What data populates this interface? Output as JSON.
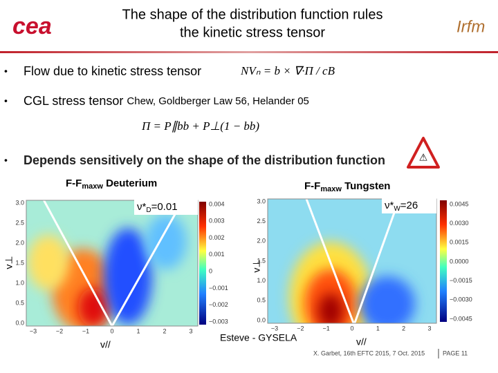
{
  "header": {
    "title_lines": [
      "The shape of the distribution function rules",
      "the kinetic stress tensor"
    ],
    "logo_left": "cea",
    "logo_right": "Irfm"
  },
  "bullets": [
    {
      "text": "Flow due to kinetic stress tensor",
      "formula": "NVₙ = b × ∇·Π / cB"
    },
    {
      "text": "CGL stress tensor",
      "note": "Chew, Goldberger Law 56, Helander 05",
      "formula": "Π = P∥bb + P⊥(1 − bb)"
    },
    {
      "text": "Depends sensitively on the shape of the distribution function"
    }
  ],
  "panels": [
    {
      "label": "F-F",
      "label_sub": "maxw",
      "label_rest": " Deuterium",
      "nu": "ν*",
      "nu_sub": "D",
      "nu_rest": "=0.01",
      "y_label": "v⊥",
      "x_label": "v//",
      "yticks": [
        "0.0",
        "0.5",
        "1.0",
        "1.5",
        "2.0",
        "2.5",
        "3.0"
      ],
      "xticks": [
        "−3",
        "−2",
        "−1",
        "0",
        "1",
        "2",
        "3"
      ],
      "colorbar_ticks": [
        "0.004",
        "0.003",
        "0.002",
        "0.001",
        "0",
        "−0.001",
        "−0.002",
        "−0.003"
      ]
    },
    {
      "label": "F-F",
      "label_sub": "maxw",
      "label_rest": " Tungsten",
      "nu": "ν*",
      "nu_sub": "W",
      "nu_rest": "=26",
      "y_label": "v⊥",
      "x_label": "v//",
      "yticks": [
        "0.0",
        "0.5",
        "1.0",
        "1.5",
        "2.0",
        "2.5",
        "3.0"
      ],
      "xticks": [
        "−3",
        "−2",
        "−1",
        "0",
        "1",
        "2",
        "3"
      ],
      "colorbar_ticks": [
        "0.0045",
        "0.0030",
        "0.0015",
        "0.0000",
        "−0.0015",
        "−0.0030",
        "−0.0045"
      ]
    }
  ],
  "credit": "Esteve - GYSELA",
  "footer": {
    "citation": "X. Garbet, 16th EFTC 2015, 7 Oct. 2015",
    "page": "PAGE 11"
  }
}
